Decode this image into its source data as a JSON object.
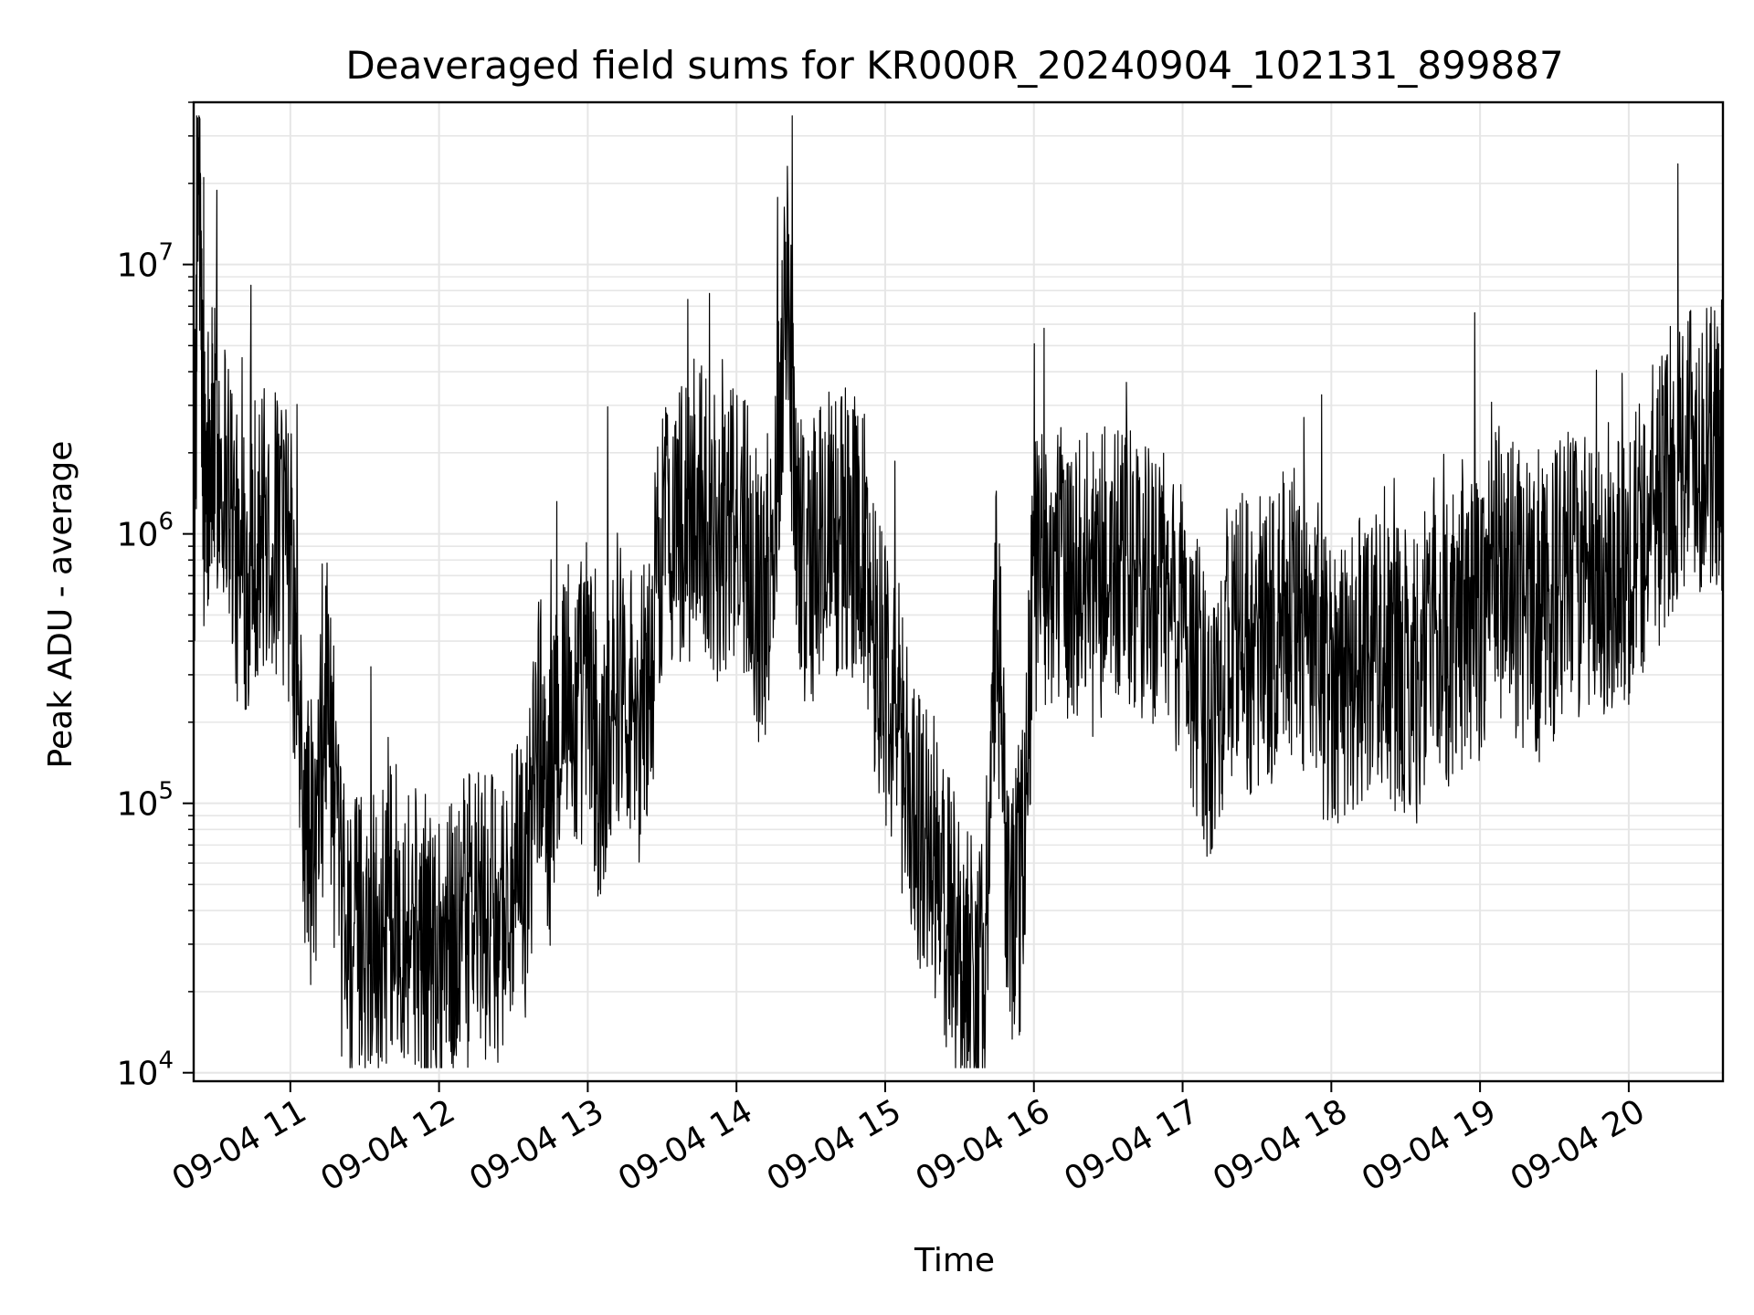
{
  "chart_data": {
    "type": "line",
    "title": "Deaveraged field sums for KR000R_20240904_102131_899887",
    "xlabel": "Time",
    "ylabel": "Peak ADU - average",
    "yscale": "log",
    "ylim": [
      9300,
      40000000
    ],
    "xlim": [
      "2024-09-04 10:21",
      "2024-09-04 20:38"
    ],
    "grid": true,
    "line_color": "#000000",
    "grid_color": "#e6e6e6",
    "x_ticks": [
      "09-04 11",
      "09-04 12",
      "09-04 13",
      "09-04 14",
      "09-04 15",
      "09-04 16",
      "09-04 17",
      "09-04 18",
      "09-04 19",
      "09-04 20"
    ],
    "y_ticks": [
      {
        "base": "10",
        "exp": "4",
        "value": 10000
      },
      {
        "base": "10",
        "exp": "5",
        "value": 100000
      },
      {
        "base": "10",
        "exp": "6",
        "value": 1000000
      },
      {
        "base": "10",
        "exp": "7",
        "value": 10000000
      }
    ],
    "series": [
      {
        "x": [
          "2024-09-04 10:21",
          "2024-09-04 10:23",
          "2024-09-04 10:25",
          "2024-09-04 10:27",
          "2024-09-04 10:30",
          "2024-09-04 10:35",
          "2024-09-04 10:40",
          "2024-09-04 10:45",
          "2024-09-04 10:50",
          "2024-09-04 10:55",
          "2024-09-04 11:00",
          "2024-09-04 11:05",
          "2024-09-04 11:10",
          "2024-09-04 11:15",
          "2024-09-04 11:20",
          "2024-09-04 11:25",
          "2024-09-04 11:30",
          "2024-09-04 11:35",
          "2024-09-04 11:40",
          "2024-09-04 11:45",
          "2024-09-04 11:50",
          "2024-09-04 11:55",
          "2024-09-04 12:00",
          "2024-09-04 12:05",
          "2024-09-04 12:10",
          "2024-09-04 12:15",
          "2024-09-04 12:20",
          "2024-09-04 12:25",
          "2024-09-04 12:30",
          "2024-09-04 12:35",
          "2024-09-04 12:40",
          "2024-09-04 12:45",
          "2024-09-04 12:50",
          "2024-09-04 12:55",
          "2024-09-04 13:00",
          "2024-09-04 13:05",
          "2024-09-04 13:10",
          "2024-09-04 13:15",
          "2024-09-04 13:20",
          "2024-09-04 13:25",
          "2024-09-04 13:30",
          "2024-09-04 13:35",
          "2024-09-04 13:40",
          "2024-09-04 13:45",
          "2024-09-04 13:50",
          "2024-09-04 13:55",
          "2024-09-04 14:00",
          "2024-09-04 14:05",
          "2024-09-04 14:10",
          "2024-09-04 14:15",
          "2024-09-04 14:20",
          "2024-09-04 14:25",
          "2024-09-04 14:30",
          "2024-09-04 14:35",
          "2024-09-04 14:40",
          "2024-09-04 14:45",
          "2024-09-04 14:50",
          "2024-09-04 14:55",
          "2024-09-04 15:00",
          "2024-09-04 15:05",
          "2024-09-04 15:10",
          "2024-09-04 15:15",
          "2024-09-04 15:20",
          "2024-09-04 15:25",
          "2024-09-04 15:30",
          "2024-09-04 15:35",
          "2024-09-04 15:40",
          "2024-09-04 15:45",
          "2024-09-04 15:50",
          "2024-09-04 15:55",
          "2024-09-04 16:00",
          "2024-09-04 16:05",
          "2024-09-04 16:10",
          "2024-09-04 16:15",
          "2024-09-04 16:20",
          "2024-09-04 16:25",
          "2024-09-04 16:30",
          "2024-09-04 16:35",
          "2024-09-04 16:40",
          "2024-09-04 16:45",
          "2024-09-04 16:50",
          "2024-09-04 16:55",
          "2024-09-04 17:00",
          "2024-09-04 17:05",
          "2024-09-04 17:10",
          "2024-09-04 17:15",
          "2024-09-04 17:20",
          "2024-09-04 17:25",
          "2024-09-04 17:30",
          "2024-09-04 17:35",
          "2024-09-04 17:40",
          "2024-09-04 17:45",
          "2024-09-04 17:50",
          "2024-09-04 17:55",
          "2024-09-04 18:00",
          "2024-09-04 18:05",
          "2024-09-04 18:10",
          "2024-09-04 18:15",
          "2024-09-04 18:20",
          "2024-09-04 18:25",
          "2024-09-04 18:30",
          "2024-09-04 18:35",
          "2024-09-04 18:40",
          "2024-09-04 18:45",
          "2024-09-04 18:50",
          "2024-09-04 18:55",
          "2024-09-04 19:00",
          "2024-09-04 19:05",
          "2024-09-04 19:10",
          "2024-09-04 19:15",
          "2024-09-04 19:20",
          "2024-09-04 19:25",
          "2024-09-04 19:30",
          "2024-09-04 19:35",
          "2024-09-04 19:40",
          "2024-09-04 19:45",
          "2024-09-04 19:50",
          "2024-09-04 19:55",
          "2024-09-04 20:00",
          "2024-09-04 20:05",
          "2024-09-04 20:10",
          "2024-09-04 20:15",
          "2024-09-04 20:20",
          "2024-09-04 20:25",
          "2024-09-04 20:30",
          "2024-09-04 20:35",
          "2024-09-04 20:38"
        ],
        "y": [
          500000,
          28000000,
          1500000,
          2000000,
          2000000,
          1700000,
          550000,
          1000000,
          1000000,
          1000000,
          800000,
          100000,
          60000,
          300000,
          40000,
          30000,
          35000,
          30000,
          40000,
          40000,
          35000,
          30000,
          30000,
          30000,
          35000,
          40000,
          35000,
          40000,
          45000,
          50000,
          200000,
          100000,
          300000,
          200000,
          300000,
          100000,
          300000,
          300000,
          200000,
          300000,
          1000000,
          1200000,
          1000000,
          1500000,
          1000000,
          1000000,
          1000000,
          1000000,
          500000,
          1000000,
          10000000,
          1000000,
          700000,
          1000000,
          1000000,
          1000000,
          1000000,
          500000,
          300000,
          200000,
          100000,
          80000,
          60000,
          40000,
          30000,
          25000,
          22000,
          500000,
          40000,
          50000,
          700000,
          800000,
          700000,
          700000,
          700000,
          600000,
          800000,
          700000,
          700000,
          600000,
          700000,
          500000,
          500000,
          300000,
          200000,
          300000,
          400000,
          400000,
          300000,
          400000,
          500000,
          500000,
          400000,
          300000,
          300000,
          300000,
          300000,
          400000,
          400000,
          300000,
          300000,
          300000,
          500000,
          400000,
          400000,
          500000,
          500000,
          800000,
          700000,
          600000,
          500000,
          500000,
          600000,
          700000,
          700000,
          600000,
          700000,
          800000,
          800000,
          1000000,
          1200000,
          1500000,
          2000000,
          2500000,
          2000000,
          2000000,
          2200000
        ]
      }
    ]
  }
}
